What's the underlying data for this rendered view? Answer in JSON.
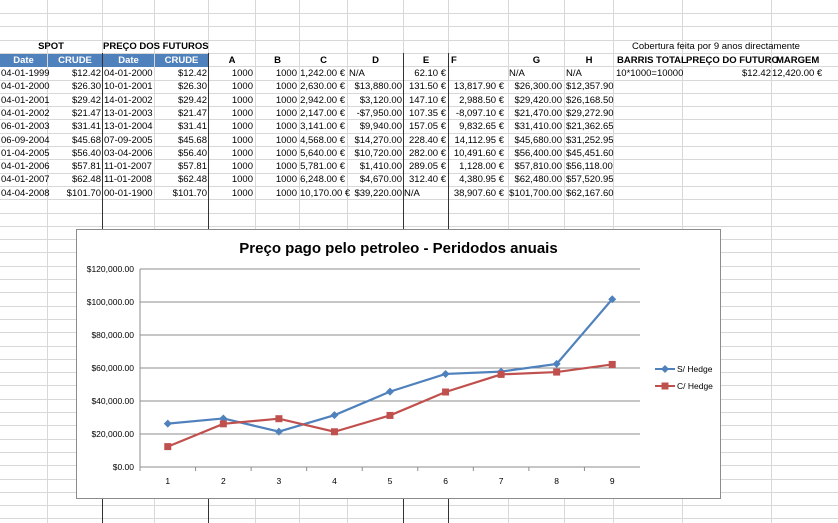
{
  "top_note": "Cobertura feita por 9 anos directamente",
  "group_headers": {
    "spot": "SPOT",
    "futuros": "PREÇO DOS FUTUROS"
  },
  "blue_headers": [
    "Date",
    "CRUDE USD",
    "Date",
    "CRUDE USD"
  ],
  "col_headers": [
    "A",
    "B",
    "C",
    "D",
    "E",
    "F",
    "G",
    "H"
  ],
  "right_headers": [
    "BARRIS TOTAL",
    "PREÇO DO FUTURO",
    "MARGEM"
  ],
  "right_row": [
    "10*1000=10000",
    "$12.42",
    "12,420.00 €"
  ],
  "rows": [
    [
      "04-01-1999",
      "$12.42",
      "04-01-2000",
      "$12.42",
      "1000",
      "1000",
      "1,242.00 €",
      "N/A",
      "62.10 €",
      "",
      "N/A",
      "N/A"
    ],
    [
      "04-01-2000",
      "$26.30",
      "10-01-2001",
      "$26.30",
      "1000",
      "1000",
      "2,630.00 €",
      "$13,880.00",
      "131.50 €",
      "13,817.90 €",
      "$26,300.00",
      "$12,357.90"
    ],
    [
      "04-01-2001",
      "$29.42",
      "14-01-2002",
      "$29.42",
      "1000",
      "1000",
      "2,942.00 €",
      "$3,120.00",
      "147.10 €",
      "2,988.50 €",
      "$29,420.00",
      "$26,168.50"
    ],
    [
      "04-01-2002",
      "$21.47",
      "13-01-2003",
      "$21.47",
      "1000",
      "1000",
      "2,147.00 €",
      "-$7,950.00",
      "107.35 €",
      "-8,097.10 €",
      "$21,470.00",
      "$29,272.90"
    ],
    [
      "06-01-2003",
      "$31.41",
      "13-01-2004",
      "$31.41",
      "1000",
      "1000",
      "3,141.00 €",
      "$9,940.00",
      "157.05 €",
      "9,832.65 €",
      "$31,410.00",
      "$21,362.65"
    ],
    [
      "06-09-2004",
      "$45.68",
      "07-09-2005",
      "$45.68",
      "1000",
      "1000",
      "4,568.00 €",
      "$14,270.00",
      "228.40 €",
      "14,112.95 €",
      "$45,680.00",
      "$31,252.95"
    ],
    [
      "01-04-2005",
      "$56.40",
      "03-04-2006",
      "$56.40",
      "1000",
      "1000",
      "5,640.00 €",
      "$10,720.00",
      "282.00 €",
      "10,491.60 €",
      "$56,400.00",
      "$45,451.60"
    ],
    [
      "04-01-2006",
      "$57.81",
      "11-01-2007",
      "$57.81",
      "1000",
      "1000",
      "5,781.00 €",
      "$1,410.00",
      "289.05 €",
      "1,128.00 €",
      "$57,810.00",
      "$56,118.00"
    ],
    [
      "04-01-2007",
      "$62.48",
      "11-01-2008",
      "$62.48",
      "1000",
      "1000",
      "6,248.00 €",
      "$4,670.00",
      "312.40 €",
      "4,380.95 €",
      "$62,480.00",
      "$57,520.95"
    ],
    [
      "04-04-2008",
      "$101.70",
      "00-01-1900",
      "$101.70",
      "1000",
      "1000",
      "10,170.00 €",
      "$39,220.00",
      "N/A",
      "38,907.60 €",
      "$101,700.00",
      "$62,167.60"
    ]
  ],
  "chart_data": {
    "type": "line",
    "title": "Preço pago pelo petroleo - Peridodos anuais",
    "xlabel": "",
    "ylabel": "",
    "x": [
      1,
      2,
      3,
      4,
      5,
      6,
      7,
      8,
      9
    ],
    "ylim": [
      0,
      120000
    ],
    "y_ticks": [
      0,
      20000,
      40000,
      60000,
      80000,
      100000,
      120000
    ],
    "y_tick_labels": [
      "$0.00",
      "$20,000.00",
      "$40,000.00",
      "$60,000.00",
      "$80,000.00",
      "$100,000.00",
      "$120,000.00"
    ],
    "grid": true,
    "legend_position": "right",
    "series": [
      {
        "name": "S/ Hedge",
        "color": "#4f81bd",
        "marker": "diamond",
        "values": [
          26300,
          29420,
          21470,
          31410,
          45680,
          56400,
          57810,
          62480,
          101700
        ]
      },
      {
        "name": "C/ Hedge",
        "color": "#c0504d",
        "marker": "square",
        "values": [
          12357.9,
          26168.5,
          29272.9,
          21362.65,
          31252.95,
          45451.6,
          56118.0,
          57520.95,
          62167.6
        ]
      }
    ]
  }
}
